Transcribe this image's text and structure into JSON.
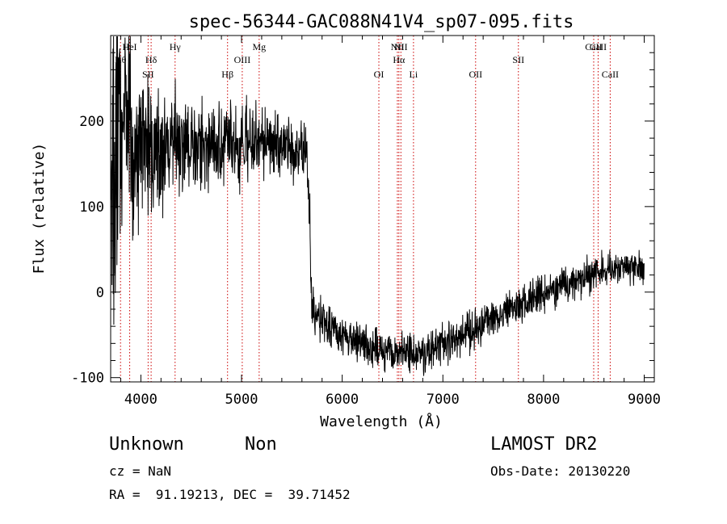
{
  "chart_data": {
    "type": "line",
    "title": "spec-56344-GAC088N41V4_sp07-095.fits",
    "xlabel": "Wavelength (Å)",
    "ylabel": "Flux (relative)",
    "xlim": [
      3700,
      9100
    ],
    "ylim": [
      -105,
      300
    ],
    "xticks": [
      4000,
      5000,
      6000,
      7000,
      8000,
      9000
    ],
    "yticks": [
      -100,
      0,
      100,
      200
    ],
    "xtick_labels": [
      "4000",
      "5000",
      "6000",
      "7000",
      "8000",
      "9000"
    ],
    "ytick_labels": [
      "-100",
      "0",
      "100",
      "200"
    ],
    "grid": false,
    "line_color": "#000000",
    "marker_color": "#cc0000",
    "series": [
      {
        "x": [
          3700,
          3750,
          3800,
          3850,
          3900,
          3950,
          4000,
          4100,
          4200,
          4300,
          4400,
          4500,
          4600,
          4700,
          4800,
          4900,
          5000,
          5100,
          5200,
          5300,
          5400,
          5500,
          5600,
          5650,
          5670,
          5680,
          5690,
          5700,
          5720,
          5750,
          5800,
          5900,
          6000,
          6100,
          6200,
          6300,
          6400,
          6500,
          6600,
          6700,
          6800,
          6900,
          7000,
          7100,
          7200,
          7300,
          7400,
          7500,
          7600,
          7700,
          7800,
          7900,
          8000,
          8100,
          8200,
          8300,
          8400,
          8500,
          8600,
          8700,
          8800,
          8900,
          9000
        ],
        "y": [
          80,
          160,
          190,
          170,
          175,
          165,
          170,
          160,
          165,
          175,
          170,
          170,
          175,
          172,
          170,
          172,
          170,
          172,
          175,
          175,
          172,
          168,
          165,
          160,
          120,
          60,
          10,
          -15,
          -25,
          -30,
          -35,
          -42,
          -50,
          -55,
          -58,
          -62,
          -68,
          -70,
          -68,
          -72,
          -68,
          -65,
          -60,
          -55,
          -50,
          -45,
          -38,
          -30,
          -25,
          -20,
          -15,
          -8,
          -3,
          3,
          8,
          12,
          18,
          22,
          25,
          27,
          28,
          30,
          25
        ],
        "noise": [
          90,
          80,
          70,
          60,
          55,
          50,
          45,
          40,
          35,
          30,
          28,
          25,
          25,
          25,
          24,
          22,
          22,
          22,
          20,
          20,
          18,
          18,
          18,
          18,
          18,
          18,
          16,
          14,
          14,
          14,
          13,
          12,
          12,
          12,
          12,
          12,
          12,
          12,
          12,
          12,
          12,
          12,
          11,
          11,
          11,
          11,
          11,
          11,
          10,
          10,
          10,
          10,
          10,
          10,
          10,
          10,
          10,
          10,
          10,
          10,
          10,
          10,
          10
        ]
      }
    ],
    "lines": [
      {
        "label": "Hθ",
        "wave": 3798,
        "row": 2
      },
      {
        "label": "HeI",
        "wave": 3889,
        "row": 1
      },
      {
        "label": "SII",
        "wave": 4072,
        "row": 3
      },
      {
        "label": "Hδ",
        "wave": 4102,
        "row": 2
      },
      {
        "label": "Hγ",
        "wave": 4340,
        "row": 1
      },
      {
        "label": "Hβ",
        "wave": 4861,
        "row": 3
      },
      {
        "label": "OIII",
        "wave": 5007,
        "row": 2
      },
      {
        "label": "Mg",
        "wave": 5175,
        "row": 1
      },
      {
        "label": "OI",
        "wave": 6364,
        "row": 3
      },
      {
        "label": "NII",
        "wave": 6548,
        "row": 1
      },
      {
        "label": "Hα",
        "wave": 6563,
        "row": 2
      },
      {
        "label": "NII",
        "wave": 6583,
        "row": 1
      },
      {
        "label": "Li",
        "wave": 6708,
        "row": 3
      },
      {
        "label": "OII",
        "wave": 7325,
        "row": 3
      },
      {
        "label": "SII",
        "wave": 7750,
        "row": 2
      },
      {
        "label": "CaII",
        "wave": 8498,
        "row": 1
      },
      {
        "label": "CaII",
        "wave": 8542,
        "row": 1
      },
      {
        "label": "CaII",
        "wave": 8662,
        "row": 3
      }
    ]
  },
  "footer": {
    "object_class": "Unknown",
    "subclass": "Non",
    "survey": "LAMOST DR2",
    "redshift": "cz = NaN",
    "obs_date": "Obs-Date: 20130220",
    "coordinates": "RA =  91.19213, DEC =  39.71452"
  }
}
